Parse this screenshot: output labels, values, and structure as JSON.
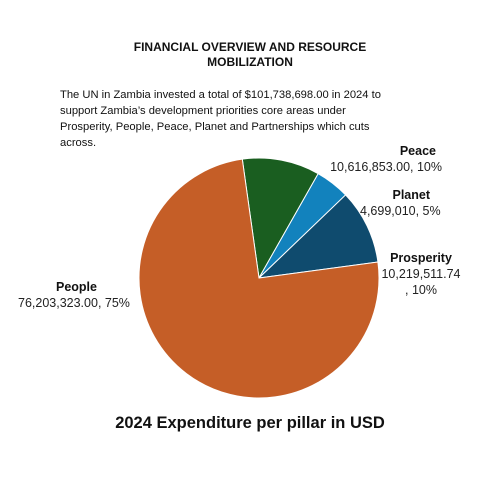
{
  "heading_line1": "FINANCIAL OVERVIEW AND RESOURCE",
  "heading_line2": "MOBILIZATION",
  "intro_text": "The UN in Zambia invested a total of $101,738,698.00 in 2024 to support Zambia’s development priorities core areas under Prosperity, People, Peace, Planet and Partnerships which cuts across.",
  "chart_data": {
    "type": "pie",
    "title": "2024 Expenditure per pillar in USD",
    "slices": [
      {
        "name": "Peace",
        "value": 10616853.0,
        "value_text": "10,616,853.00, 10%",
        "percent": 10,
        "color": "#1a5e20"
      },
      {
        "name": "Planet",
        "value": 4699010,
        "value_text": "4,699,010, 5%",
        "percent": 5,
        "color": "#1282bd"
      },
      {
        "name": "Prosperity",
        "value": 10219511.74,
        "value_text_line1": "10,219,511.74",
        "value_text_line2": ", 10%",
        "percent": 10,
        "color": "#0f4b6e"
      },
      {
        "name": "People",
        "value": 76203323.0,
        "value_text": "76,203,323.00, 75%",
        "percent": 75,
        "color": "#c55e27"
      }
    ]
  }
}
